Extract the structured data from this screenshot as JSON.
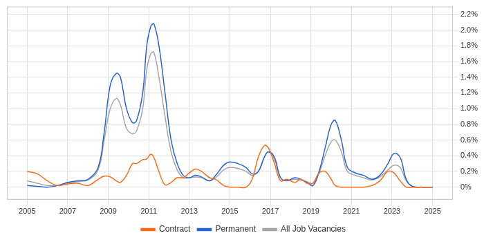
{
  "chart_data": {
    "type": "line",
    "x": [
      2005,
      2005.5,
      2006,
      2006.5,
      2007,
      2007.5,
      2008,
      2008.5,
      2008.8,
      2009.1,
      2009.4,
      2009.6,
      2009.9,
      2010.2,
      2010.4,
      2010.7,
      2010.9,
      2011.1,
      2011.25,
      2011.5,
      2011.8,
      2012.1,
      2012.4,
      2012.7,
      2013,
      2013.3,
      2013.6,
      2014,
      2014.3,
      2014.7,
      2015,
      2015.4,
      2015.8,
      2016.1,
      2016.4,
      2016.7,
      2016.9,
      2017.2,
      2017.5,
      2017.8,
      2018.2,
      2018.5,
      2018.8,
      2019.1,
      2019.4,
      2019.7,
      2020,
      2020.2,
      2020.5,
      2020.8,
      2021.2,
      2021.6,
      2022,
      2022.4,
      2022.8,
      2023.1,
      2023.4,
      2023.7,
      2024,
      2024.5,
      2025
    ],
    "series": [
      {
        "name": "Contract",
        "color": "#ff6a13",
        "values": [
          0.2,
          0.17,
          0.08,
          0.02,
          0.04,
          0.05,
          0.02,
          0.1,
          0.14,
          0.13,
          0.08,
          0.06,
          0.15,
          0.3,
          0.3,
          0.35,
          0.36,
          0.42,
          0.38,
          0.2,
          0.03,
          0.06,
          0.12,
          0.12,
          0.18,
          0.23,
          0.2,
          0.12,
          0.1,
          0.02,
          0,
          0,
          0,
          0.1,
          0.38,
          0.53,
          0.5,
          0.3,
          0.08,
          0.1,
          0.06,
          0.1,
          0.05,
          0.05,
          0.18,
          0.2,
          0.1,
          0.02,
          0,
          0,
          0,
          0,
          0.02,
          0.08,
          0.2,
          0.18,
          0.08,
          0,
          0,
          0,
          0
        ]
      },
      {
        "name": "Permanent",
        "color": "#2563d9",
        "values": [
          0.02,
          0.01,
          0,
          0.02,
          0.06,
          0.08,
          0.1,
          0.25,
          0.7,
          1.3,
          1.45,
          1.4,
          1.0,
          0.82,
          0.85,
          1.2,
          1.8,
          2.05,
          2.08,
          1.8,
          1.2,
          0.6,
          0.3,
          0.15,
          0.12,
          0.15,
          0.13,
          0.08,
          0.15,
          0.28,
          0.32,
          0.3,
          0.25,
          0.17,
          0.2,
          0.38,
          0.45,
          0.38,
          0.12,
          0.08,
          0.12,
          0.1,
          0.06,
          0.02,
          0.2,
          0.5,
          0.8,
          0.85,
          0.6,
          0.25,
          0.18,
          0.15,
          0.1,
          0.15,
          0.3,
          0.43,
          0.38,
          0.1,
          0.01,
          0,
          0
        ]
      },
      {
        "name": "All Job Vacancies",
        "color": "#a6a6a6",
        "values": [
          0.08,
          0.05,
          0.02,
          0.02,
          0.05,
          0.07,
          0.09,
          0.22,
          0.6,
          1.0,
          1.13,
          1.05,
          0.75,
          0.68,
          0.72,
          1.0,
          1.5,
          1.7,
          1.72,
          1.4,
          0.9,
          0.45,
          0.22,
          0.12,
          0.12,
          0.13,
          0.12,
          0.08,
          0.12,
          0.22,
          0.25,
          0.24,
          0.2,
          0.15,
          0.2,
          0.38,
          0.45,
          0.35,
          0.12,
          0.08,
          0.1,
          0.09,
          0.07,
          0.05,
          0.18,
          0.4,
          0.58,
          0.6,
          0.45,
          0.2,
          0.15,
          0.12,
          0.09,
          0.13,
          0.22,
          0.28,
          0.25,
          0.08,
          0.01,
          0,
          0
        ]
      }
    ],
    "xlim": [
      2004,
      2026
    ],
    "xticks": [
      2005,
      2007,
      2009,
      2011,
      2013,
      2015,
      2017,
      2019,
      2021,
      2023,
      2025
    ],
    "ylim": [
      -0.16,
      2.3
    ],
    "yticks": [
      {
        "value": 0,
        "label": "0%"
      },
      {
        "value": 0.2,
        "label": "0.2%"
      },
      {
        "value": 0.4,
        "label": "0.4%"
      },
      {
        "value": 0.6,
        "label": "0.6%"
      },
      {
        "value": 0.8,
        "label": "0.8%"
      },
      {
        "value": 1.0,
        "label": "1.0%"
      },
      {
        "value": 1.2,
        "label": "1.2%"
      },
      {
        "value": 1.4,
        "label": "1.4%"
      },
      {
        "value": 1.6,
        "label": "1.6%"
      },
      {
        "value": 1.8,
        "label": "1.8%"
      },
      {
        "value": 2.0,
        "label": "2.0%"
      },
      {
        "value": 2.2,
        "label": "2.2%"
      }
    ],
    "grid": true,
    "legend": "bottom"
  }
}
